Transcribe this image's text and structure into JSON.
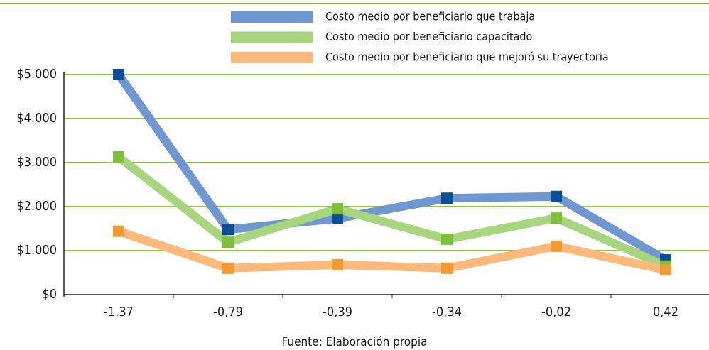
{
  "chart_data": {
    "type": "line",
    "source": "Fuente: Elaboración propia",
    "categories": [
      "-1,37",
      "-0,79",
      "-0,39",
      "-0,34",
      "-0,02",
      "0,42"
    ],
    "series": [
      {
        "name": "Costo medio por beneficiario que trabaja",
        "color": "#6f97d0",
        "marker_color": "#0a4f96",
        "values": [
          5000,
          1480,
          1730,
          2190,
          2230,
          790
        ]
      },
      {
        "name": "Costo medio por beneficiario capacitado",
        "color": "#a8d67e",
        "marker_color": "#7dbf3a",
        "values": [
          3130,
          1190,
          1950,
          1260,
          1740,
          650
        ]
      },
      {
        "name": "Costo medio por beneficiario que mejoró su trayectoria",
        "color": "#fbb97b",
        "marker_color": "#f39a33",
        "values": [
          1440,
          600,
          680,
          600,
          1100,
          560
        ]
      }
    ],
    "ylim": [
      0,
      5000
    ],
    "yticks": [
      {
        "value": 0,
        "label": "$0"
      },
      {
        "value": 1000,
        "label": "$1.000"
      },
      {
        "value": 2000,
        "label": "$2.000"
      },
      {
        "value": 3000,
        "label": "$3.000"
      },
      {
        "value": 4000,
        "label": "$4.000"
      },
      {
        "value": 5000,
        "label": "$5.000"
      }
    ],
    "grid": true,
    "grid_color": "#8cc63f"
  }
}
